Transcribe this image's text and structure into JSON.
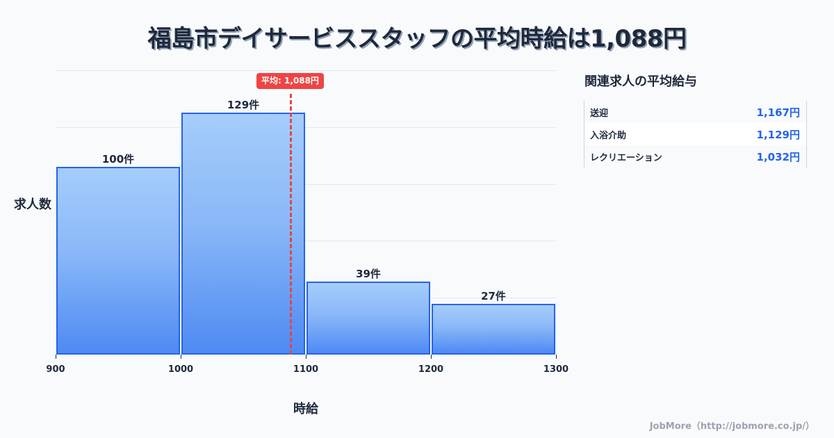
{
  "title": "福島市デイサービススタッフの平均時給は1,088円",
  "chart_data": {
    "type": "bar",
    "title": "福島市デイサービススタッフの平均時給は1,088円",
    "xlabel": "時給",
    "ylabel": "求人数",
    "bins": [
      [
        900,
        1000
      ],
      [
        1000,
        1100
      ],
      [
        1100,
        1200
      ],
      [
        1200,
        1300
      ]
    ],
    "categories": [
      "900-1000",
      "1000-1100",
      "1100-1200",
      "1200-1300"
    ],
    "values": [
      100,
      129,
      39,
      27
    ],
    "value_labels": [
      "100件",
      "129件",
      "39件",
      "27件"
    ],
    "x_ticks": [
      "900",
      "1000",
      "1100",
      "1200",
      "1300"
    ],
    "xlim": [
      900,
      1300
    ],
    "ylim": [
      0,
      150
    ],
    "grid": true,
    "gridlines_y": [
      30,
      60,
      90,
      120,
      150
    ],
    "annotations": [
      {
        "type": "vline",
        "x": 1088,
        "label": "平均: 1,088円",
        "style": "dashed",
        "color": "#ef4444"
      }
    ],
    "bar_color": "#60a5fa",
    "bar_border_color": "#2563eb"
  },
  "avg": {
    "label": "平均: 1,088円"
  },
  "axis": {
    "xlabel": "時給",
    "ylabel": "求人数"
  },
  "sidebar": {
    "title": "関連求人の平均給与",
    "rows": [
      {
        "label": "送迎",
        "value": "1,167円"
      },
      {
        "label": "入浴介助",
        "value": "1,129円"
      },
      {
        "label": "レクリエーション",
        "value": "1,032円"
      }
    ]
  },
  "footer": "JobMore（http://jobmore.co.jp/）"
}
